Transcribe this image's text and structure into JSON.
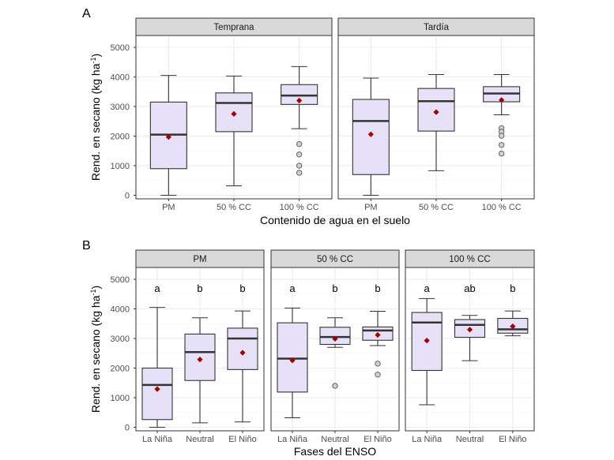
{
  "figure": {
    "panel_a_label": "A",
    "panel_b_label": "B"
  },
  "colors": {
    "box_fill": "#e6e1f7",
    "mean_marker": "#a50000",
    "outlier_fill": "#d0d0d0",
    "strip_fill": "#d9d9d9"
  },
  "chart_data": [
    {
      "type": "box",
      "id": "A",
      "ylabel": "Rend. en secano (kg ha",
      "ylabel_sup": "-1",
      "ylabel_end": ")",
      "xlabel": "Contenido de agua en el suelo",
      "ylim": [
        -120,
        5400
      ],
      "yticks": [
        0,
        1000,
        2000,
        3000,
        4000,
        5000
      ],
      "facets": [
        {
          "title": "Temprana",
          "categories": [
            "PM",
            "50 % CC",
            "100 % CC"
          ],
          "boxes": [
            {
              "low": 0,
              "q1": 900,
              "median": 2050,
              "q3": 3150,
              "high": 4050,
              "mean": 1970,
              "outliers": []
            },
            {
              "low": 320,
              "q1": 2150,
              "median": 3120,
              "q3": 3460,
              "high": 4030,
              "mean": 2750,
              "outliers": []
            },
            {
              "low": 2250,
              "q1": 3070,
              "median": 3370,
              "q3": 3740,
              "high": 4350,
              "mean": 3200,
              "outliers": [
                1730,
                1380,
                1000,
                760
              ]
            }
          ]
        },
        {
          "title": "Tardía",
          "categories": [
            "PM",
            "50 % CC",
            "100 % CC"
          ],
          "boxes": [
            {
              "low": 0,
              "q1": 700,
              "median": 2510,
              "q3": 3240,
              "high": 3960,
              "mean": 2060,
              "outliers": []
            },
            {
              "low": 830,
              "q1": 2170,
              "median": 3180,
              "q3": 3610,
              "high": 4080,
              "mean": 2810,
              "outliers": []
            },
            {
              "low": 2720,
              "q1": 3160,
              "median": 3440,
              "q3": 3670,
              "high": 4080,
              "mean": 3220,
              "outliers": [
                2270,
                2150,
                2010,
                1700,
                1410
              ]
            }
          ]
        }
      ]
    },
    {
      "type": "box",
      "id": "B",
      "ylabel": "Rend. en secano (kg ha",
      "ylabel_sup": "-1",
      "ylabel_end": ")",
      "xlabel": "Fases del ENSO",
      "ylim": [
        -120,
        5400
      ],
      "yticks": [
        0,
        1000,
        2000,
        3000,
        4000,
        5000
      ],
      "facets": [
        {
          "title": "PM",
          "categories": [
            "La Niña",
            "Neutral",
            "El Niño"
          ],
          "letters": [
            "a",
            "b",
            "b"
          ],
          "boxes": [
            {
              "low": 0,
              "q1": 260,
              "median": 1430,
              "q3": 2000,
              "high": 4050,
              "mean": 1290,
              "outliers": []
            },
            {
              "low": 150,
              "q1": 1580,
              "median": 2540,
              "q3": 3150,
              "high": 3700,
              "mean": 2290,
              "outliers": []
            },
            {
              "low": 180,
              "q1": 1950,
              "median": 3000,
              "q3": 3350,
              "high": 3930,
              "mean": 2520,
              "outliers": []
            }
          ]
        },
        {
          "title": "50 % CC",
          "categories": [
            "La Niña",
            "Neutral",
            "El Niño"
          ],
          "letters": [
            "a",
            "b",
            "b"
          ],
          "boxes": [
            {
              "low": 320,
              "q1": 1190,
              "median": 2320,
              "q3": 3530,
              "high": 4030,
              "mean": 2260,
              "outliers": []
            },
            {
              "low": 2700,
              "q1": 2800,
              "median": 3050,
              "q3": 3380,
              "high": 3700,
              "mean": 2990,
              "outliers": [
                1400
              ]
            },
            {
              "low": 2760,
              "q1": 2940,
              "median": 3270,
              "q3": 3390,
              "high": 3920,
              "mean": 3120,
              "outliers": [
                2150,
                1780
              ]
            }
          ]
        },
        {
          "title": "100 % CC",
          "categories": [
            "La Niña",
            "Neutral",
            "El Niño"
          ],
          "letters": [
            "a",
            "ab",
            "b"
          ],
          "boxes": [
            {
              "low": 760,
              "q1": 1920,
              "median": 3540,
              "q3": 3880,
              "high": 4350,
              "mean": 2930,
              "outliers": []
            },
            {
              "low": 2250,
              "q1": 3040,
              "median": 3460,
              "q3": 3640,
              "high": 3780,
              "mean": 3300,
              "outliers": []
            },
            {
              "low": 3090,
              "q1": 3180,
              "median": 3310,
              "q3": 3680,
              "high": 3930,
              "mean": 3410,
              "outliers": []
            }
          ]
        }
      ]
    }
  ]
}
